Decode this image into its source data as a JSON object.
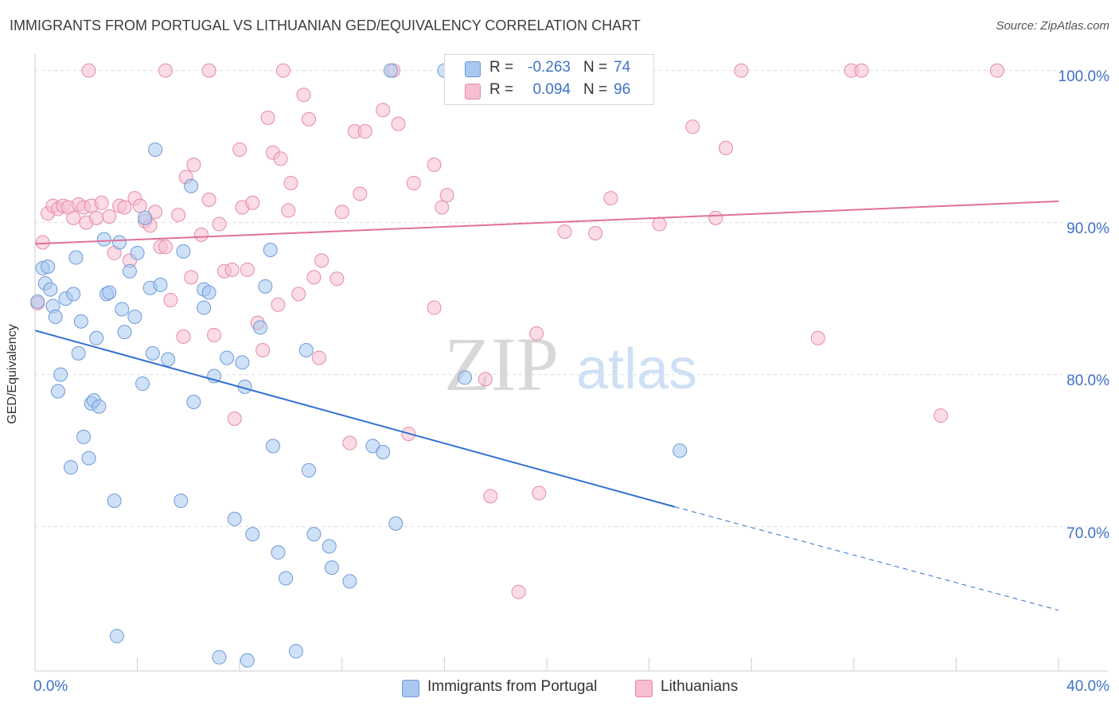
{
  "title": "IMMIGRANTS FROM PORTUGAL VS LITHUANIAN GED/EQUIVALENCY CORRELATION CHART",
  "source": "Source: ZipAtlas.com",
  "watermark": {
    "zip": "ZIP",
    "atlas": "atlas"
  },
  "legend_top": {
    "rows": [
      {
        "r_label": "R =",
        "r_value": "-0.263",
        "n_label": "N =",
        "n_value": "74",
        "color": "#a8c8f0",
        "border": "#6e9ad8"
      },
      {
        "r_label": "R =",
        "r_value": "0.094",
        "n_label": "N =",
        "n_value": "96",
        "color": "#f7bed0",
        "border": "#e48aa8"
      }
    ]
  },
  "chart_data": {
    "type": "scatter",
    "title": "IMMIGRANTS FROM PORTUGAL VS LITHUANIAN GED/EQUIVALENCY CORRELATION CHART",
    "xlabel": "",
    "ylabel": "GED/Equivalency",
    "xlim": [
      0,
      40
    ],
    "ylim": [
      60.5,
      101.5
    ],
    "x_tick_labels": [
      "0.0%",
      "40.0%"
    ],
    "y_tick_labels": [
      "100.0%",
      "90.0%",
      "80.0%",
      "70.0%"
    ],
    "y_ticks": [
      100,
      90,
      80,
      70
    ],
    "grid": true,
    "legend_position": "bottom",
    "series": [
      {
        "name": "Immigrants from Portugal",
        "color": "#a8c8f0",
        "stroke": "#6e9ad8",
        "line_color": "#2f6fd0",
        "trend": {
          "x0": 0,
          "y0": 82.9,
          "x1": 25,
          "y1": 71.3,
          "dash_to_x": 40,
          "dash_to_y": 64.5
        },
        "points": [
          [
            0.1,
            84.8
          ],
          [
            0.3,
            87.0
          ],
          [
            0.4,
            86.0
          ],
          [
            0.5,
            87.1
          ],
          [
            0.6,
            85.6
          ],
          [
            0.7,
            84.5
          ],
          [
            0.8,
            83.8
          ],
          [
            0.9,
            78.9
          ],
          [
            1.0,
            80.0
          ],
          [
            1.2,
            85.0
          ],
          [
            1.4,
            73.9
          ],
          [
            1.5,
            85.3
          ],
          [
            1.6,
            87.7
          ],
          [
            1.7,
            81.4
          ],
          [
            1.8,
            83.5
          ],
          [
            1.9,
            75.9
          ],
          [
            2.1,
            74.5
          ],
          [
            2.2,
            78.1
          ],
          [
            2.3,
            78.3
          ],
          [
            2.4,
            82.4
          ],
          [
            2.5,
            77.9
          ],
          [
            2.7,
            88.9
          ],
          [
            2.8,
            85.3
          ],
          [
            2.9,
            85.4
          ],
          [
            3.1,
            71.7
          ],
          [
            3.2,
            62.8
          ],
          [
            3.3,
            88.7
          ],
          [
            3.4,
            84.3
          ],
          [
            3.5,
            82.8
          ],
          [
            3.7,
            86.8
          ],
          [
            3.9,
            83.8
          ],
          [
            4.0,
            88.0
          ],
          [
            4.2,
            79.4
          ],
          [
            4.3,
            90.3
          ],
          [
            4.5,
            85.7
          ],
          [
            4.6,
            81.4
          ],
          [
            4.7,
            94.8
          ],
          [
            4.9,
            85.9
          ],
          [
            5.2,
            81.0
          ],
          [
            5.7,
            71.7
          ],
          [
            5.8,
            88.1
          ],
          [
            6.1,
            92.4
          ],
          [
            6.2,
            78.2
          ],
          [
            6.6,
            85.6
          ],
          [
            6.6,
            84.4
          ],
          [
            6.8,
            85.4
          ],
          [
            7.0,
            79.9
          ],
          [
            7.2,
            61.4
          ],
          [
            7.5,
            81.1
          ],
          [
            7.8,
            70.5
          ],
          [
            8.1,
            80.8
          ],
          [
            8.2,
            79.2
          ],
          [
            8.3,
            61.2
          ],
          [
            8.5,
            69.5
          ],
          [
            8.8,
            83.1
          ],
          [
            9.0,
            85.8
          ],
          [
            9.2,
            88.2
          ],
          [
            9.3,
            75.3
          ],
          [
            9.5,
            68.3
          ],
          [
            9.8,
            66.6
          ],
          [
            10.2,
            61.8
          ],
          [
            10.6,
            81.6
          ],
          [
            10.7,
            73.7
          ],
          [
            10.9,
            69.5
          ],
          [
            11.5,
            68.7
          ],
          [
            11.6,
            67.3
          ],
          [
            12.3,
            66.4
          ],
          [
            13.2,
            75.3
          ],
          [
            13.6,
            74.9
          ],
          [
            14.1,
            70.2
          ],
          [
            13.9,
            100.0
          ],
          [
            16.0,
            100.0
          ],
          [
            16.8,
            79.8
          ],
          [
            25.2,
            75.0
          ]
        ]
      },
      {
        "name": "Lithuanians",
        "color": "#f7bed0",
        "stroke": "#e48aa8",
        "line_color": "#e0709a",
        "trend": {
          "x0": 0,
          "y0": 88.6,
          "x1": 40,
          "y1": 91.4
        },
        "points": [
          [
            0.1,
            84.7
          ],
          [
            0.3,
            88.7
          ],
          [
            0.5,
            90.6
          ],
          [
            0.7,
            91.1
          ],
          [
            0.9,
            90.9
          ],
          [
            1.1,
            91.1
          ],
          [
            1.3,
            91.0
          ],
          [
            1.5,
            90.3
          ],
          [
            1.7,
            91.2
          ],
          [
            1.9,
            91.0
          ],
          [
            2.0,
            90.0
          ],
          [
            2.2,
            91.1
          ],
          [
            2.4,
            90.3
          ],
          [
            2.6,
            91.3
          ],
          [
            2.9,
            90.4
          ],
          [
            3.1,
            88.0
          ],
          [
            3.3,
            91.1
          ],
          [
            3.5,
            91.0
          ],
          [
            3.7,
            87.5
          ],
          [
            3.9,
            91.6
          ],
          [
            4.1,
            91.1
          ],
          [
            4.3,
            90.1
          ],
          [
            4.5,
            89.8
          ],
          [
            4.7,
            90.7
          ],
          [
            4.9,
            88.4
          ],
          [
            5.1,
            88.4
          ],
          [
            5.3,
            84.9
          ],
          [
            5.6,
            90.5
          ],
          [
            5.8,
            82.5
          ],
          [
            5.9,
            93.0
          ],
          [
            6.1,
            86.4
          ],
          [
            6.2,
            93.8
          ],
          [
            6.5,
            89.2
          ],
          [
            6.8,
            91.5
          ],
          [
            7.0,
            82.6
          ],
          [
            7.2,
            89.9
          ],
          [
            7.4,
            86.8
          ],
          [
            7.7,
            86.9
          ],
          [
            7.8,
            77.1
          ],
          [
            8.0,
            94.8
          ],
          [
            8.1,
            91.0
          ],
          [
            8.3,
            86.9
          ],
          [
            8.5,
            91.3
          ],
          [
            8.7,
            83.4
          ],
          [
            8.9,
            81.6
          ],
          [
            9.1,
            96.9
          ],
          [
            9.3,
            94.6
          ],
          [
            9.5,
            84.6
          ],
          [
            9.6,
            94.2
          ],
          [
            9.9,
            90.8
          ],
          [
            10.0,
            92.6
          ],
          [
            10.3,
            85.3
          ],
          [
            10.5,
            98.4
          ],
          [
            10.7,
            96.8
          ],
          [
            10.9,
            86.4
          ],
          [
            11.1,
            81.1
          ],
          [
            11.2,
            87.5
          ],
          [
            11.8,
            86.3
          ],
          [
            12.0,
            90.7
          ],
          [
            12.3,
            75.5
          ],
          [
            12.5,
            96.0
          ],
          [
            12.7,
            91.9
          ],
          [
            12.9,
            96.0
          ],
          [
            13.6,
            97.4
          ],
          [
            14.2,
            96.5
          ],
          [
            14.6,
            76.1
          ],
          [
            14.8,
            92.6
          ],
          [
            15.6,
            93.8
          ],
          [
            15.9,
            91.0
          ],
          [
            16.1,
            91.8
          ],
          [
            15.6,
            84.4
          ],
          [
            17.6,
            79.7
          ],
          [
            17.8,
            72.0
          ],
          [
            18.9,
            65.7
          ],
          [
            19.6,
            82.7
          ],
          [
            19.7,
            72.2
          ],
          [
            20.7,
            89.4
          ],
          [
            21.9,
            89.3
          ],
          [
            22.5,
            91.6
          ],
          [
            23.7,
            100.0
          ],
          [
            24.4,
            89.9
          ],
          [
            25.7,
            96.3
          ],
          [
            26.6,
            90.3
          ],
          [
            27.0,
            94.9
          ],
          [
            27.6,
            100.0
          ],
          [
            30.6,
            82.4
          ],
          [
            31.9,
            100.0
          ],
          [
            32.3,
            100.0
          ],
          [
            35.4,
            77.3
          ],
          [
            37.6,
            100.0
          ],
          [
            22.9,
            100.0
          ],
          [
            14.0,
            100.0
          ],
          [
            9.7,
            100.0
          ],
          [
            5.1,
            100.0
          ],
          [
            2.1,
            100.0
          ],
          [
            6.8,
            100.0
          ]
        ]
      }
    ]
  }
}
